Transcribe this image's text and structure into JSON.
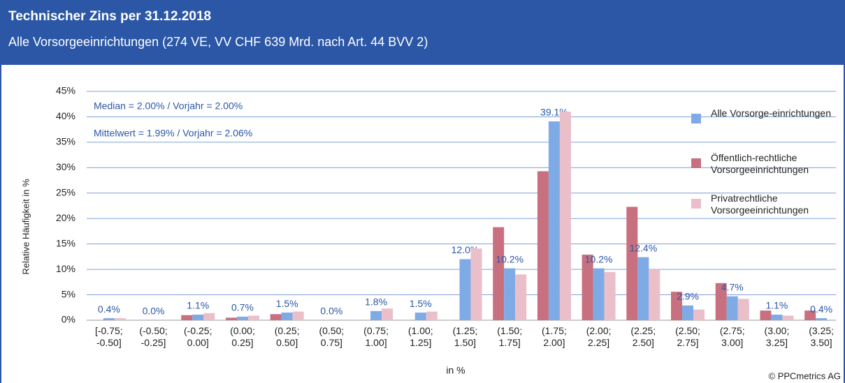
{
  "chart_data": {
    "type": "bar",
    "title": "Technischer Zins per 31.12.2018",
    "subtitle": "Alle Vorsorgeeinrichtungen (274 VE, VV  CHF 639 Mrd. nach Art. 44 BVV  2)",
    "y_label": "Relative Häufigkeit in %",
    "x_label": "in %",
    "annotations": [
      "Median = 2.00% / Vorjahr = 2.00%",
      "Mittelwert = 1.99% / Vorjahr = 2.06%"
    ],
    "source": "© PPCmetrics AG",
    "categories": [
      "[-0.75; -0.50]",
      "(-0.50; -0.25]",
      "(-0.25; 0.00]",
      "(0.00; 0.25]",
      "(0.25; 0.50]",
      "(0.50; 0.75]",
      "(0.75; 1.00]",
      "(1.00; 1.25]",
      "(1.25; 1.50]",
      "(1.50; 1.75]",
      "(1.75; 2.00]",
      "(2.00; 2.25]",
      "(2.25; 2.50]",
      "(2.50; 2.75]",
      "(2.75; 3.00]",
      "(3.00; 3.25]",
      "(3.25; 3.50]"
    ],
    "series": [
      {
        "name": "Öffentlich-rechtliche Vorsorgeeinrichtungen",
        "color": "#c8707f",
        "values": [
          0,
          0,
          1.0,
          0.5,
          1.2,
          0,
          0,
          0,
          0,
          18.3,
          29.3,
          12.9,
          22.3,
          5.6,
          7.3,
          1.9,
          1.9
        ]
      },
      {
        "name": "Alle Vorsorge-einrichtungen",
        "color": "#7eaae6",
        "values": [
          0.4,
          0.0,
          1.1,
          0.7,
          1.5,
          0.0,
          1.8,
          1.5,
          12.0,
          10.2,
          39.1,
          10.2,
          12.4,
          2.9,
          4.7,
          1.1,
          0.4
        ],
        "value_labels": [
          "0.4%",
          "0.0%",
          "1.1%",
          "0.7%",
          "1.5%",
          "0.0%",
          "1.8%",
          "1.5%",
          "12.0%",
          "10.2%",
          "39.1%",
          "10.2%",
          "12.4%",
          "2.9%",
          "4.7%",
          "1.1%",
          "0.4%"
        ]
      },
      {
        "name": "Privatrechtliche Vorsorgeeinrichtungen",
        "color": "#ebbfc9",
        "values": [
          0.4,
          0,
          1.4,
          0.9,
          1.7,
          0,
          2.3,
          1.7,
          14.1,
          9.0,
          41.0,
          9.5,
          10.0,
          2.1,
          4.2,
          0.9,
          0
        ]
      }
    ],
    "ylim": [
      0,
      45
    ],
    "yticks": [
      {
        "value": 0,
        "label": "0%"
      },
      {
        "value": 5,
        "label": "5%"
      },
      {
        "value": 10,
        "label": "10%"
      },
      {
        "value": 15,
        "label": "15%"
      },
      {
        "value": 20,
        "label": "20%"
      },
      {
        "value": 25,
        "label": "25%"
      },
      {
        "value": 30,
        "label": "30%"
      },
      {
        "value": 35,
        "label": "35%"
      },
      {
        "value": 40,
        "label": "40%"
      },
      {
        "value": 45,
        "label": "45%"
      }
    ],
    "grid": true
  }
}
